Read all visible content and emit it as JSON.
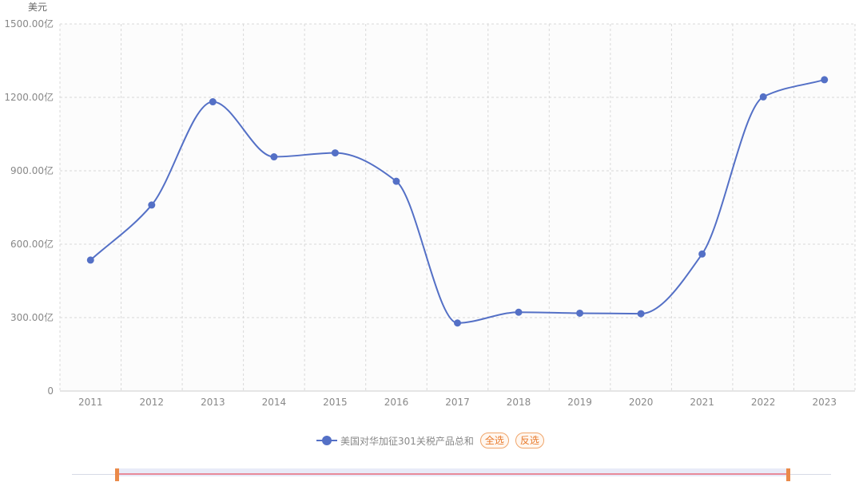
{
  "chart_data": {
    "type": "line",
    "title": "",
    "ylabel": "美元",
    "xlabel": "",
    "categories": [
      "2011",
      "2012",
      "2013",
      "2014",
      "2015",
      "2016",
      "2017",
      "2018",
      "2019",
      "2020",
      "2021",
      "2022",
      "2023"
    ],
    "series": [
      {
        "name": "美国对华加征301关税产品总和",
        "values": [
          535,
          760,
          1182,
          957,
          973,
          857,
          278,
          322,
          318,
          316,
          560,
          1202,
          1272
        ],
        "color": "#5470c6",
        "smooth": true
      }
    ],
    "ylim": [
      0,
      1500
    ],
    "yticks": [
      "0",
      "300.00亿",
      "600.00亿",
      "900.00亿",
      "1200.00亿",
      "1500.00亿"
    ],
    "grid": true,
    "legend_position": "bottom-center"
  },
  "legend": {
    "select_all": "全选",
    "invert": "反选"
  },
  "zoom": {
    "start_percent": 0,
    "end_percent": 100
  }
}
